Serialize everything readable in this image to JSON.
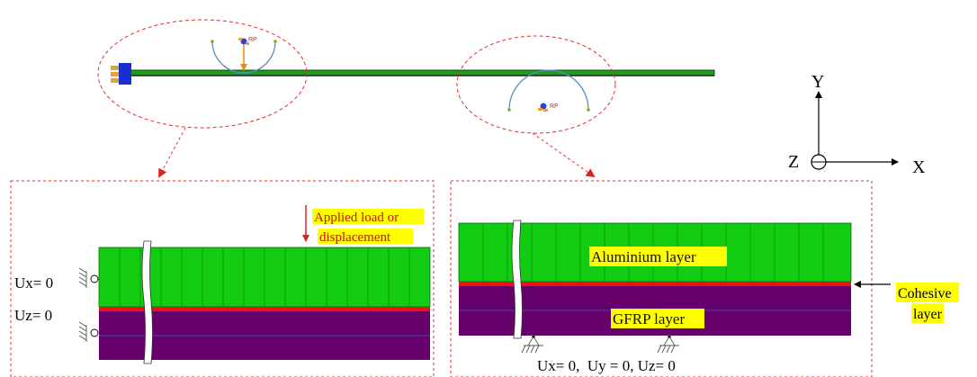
{
  "top_view": {
    "rp_label_left": "RP",
    "rp_label_right": "RP"
  },
  "axes": {
    "y_label": "Y",
    "z_label": "Z",
    "x_label": "X"
  },
  "left_detail": {
    "load_label_line1": "Applied load or",
    "load_label_line2": "displacement",
    "bc_top": "Ux= 0",
    "bc_bottom": "Uz= 0"
  },
  "right_detail": {
    "aluminium_label": "Aluminium layer",
    "gfrp_label": "GFRP layer",
    "cohesive_line1": "Cohesive",
    "cohesive_line2": "layer",
    "support_bc": "Ux= 0,  Uy = 0, Uz= 0"
  },
  "colors": {
    "aluminium": "#11cc11",
    "gfrp": "#66006a",
    "cohesive": "#ee1111",
    "highlight": "#ffff00",
    "dashed": "#e03030",
    "support_arc": "#5a8ec0",
    "load_arrow": "#e88a10"
  }
}
